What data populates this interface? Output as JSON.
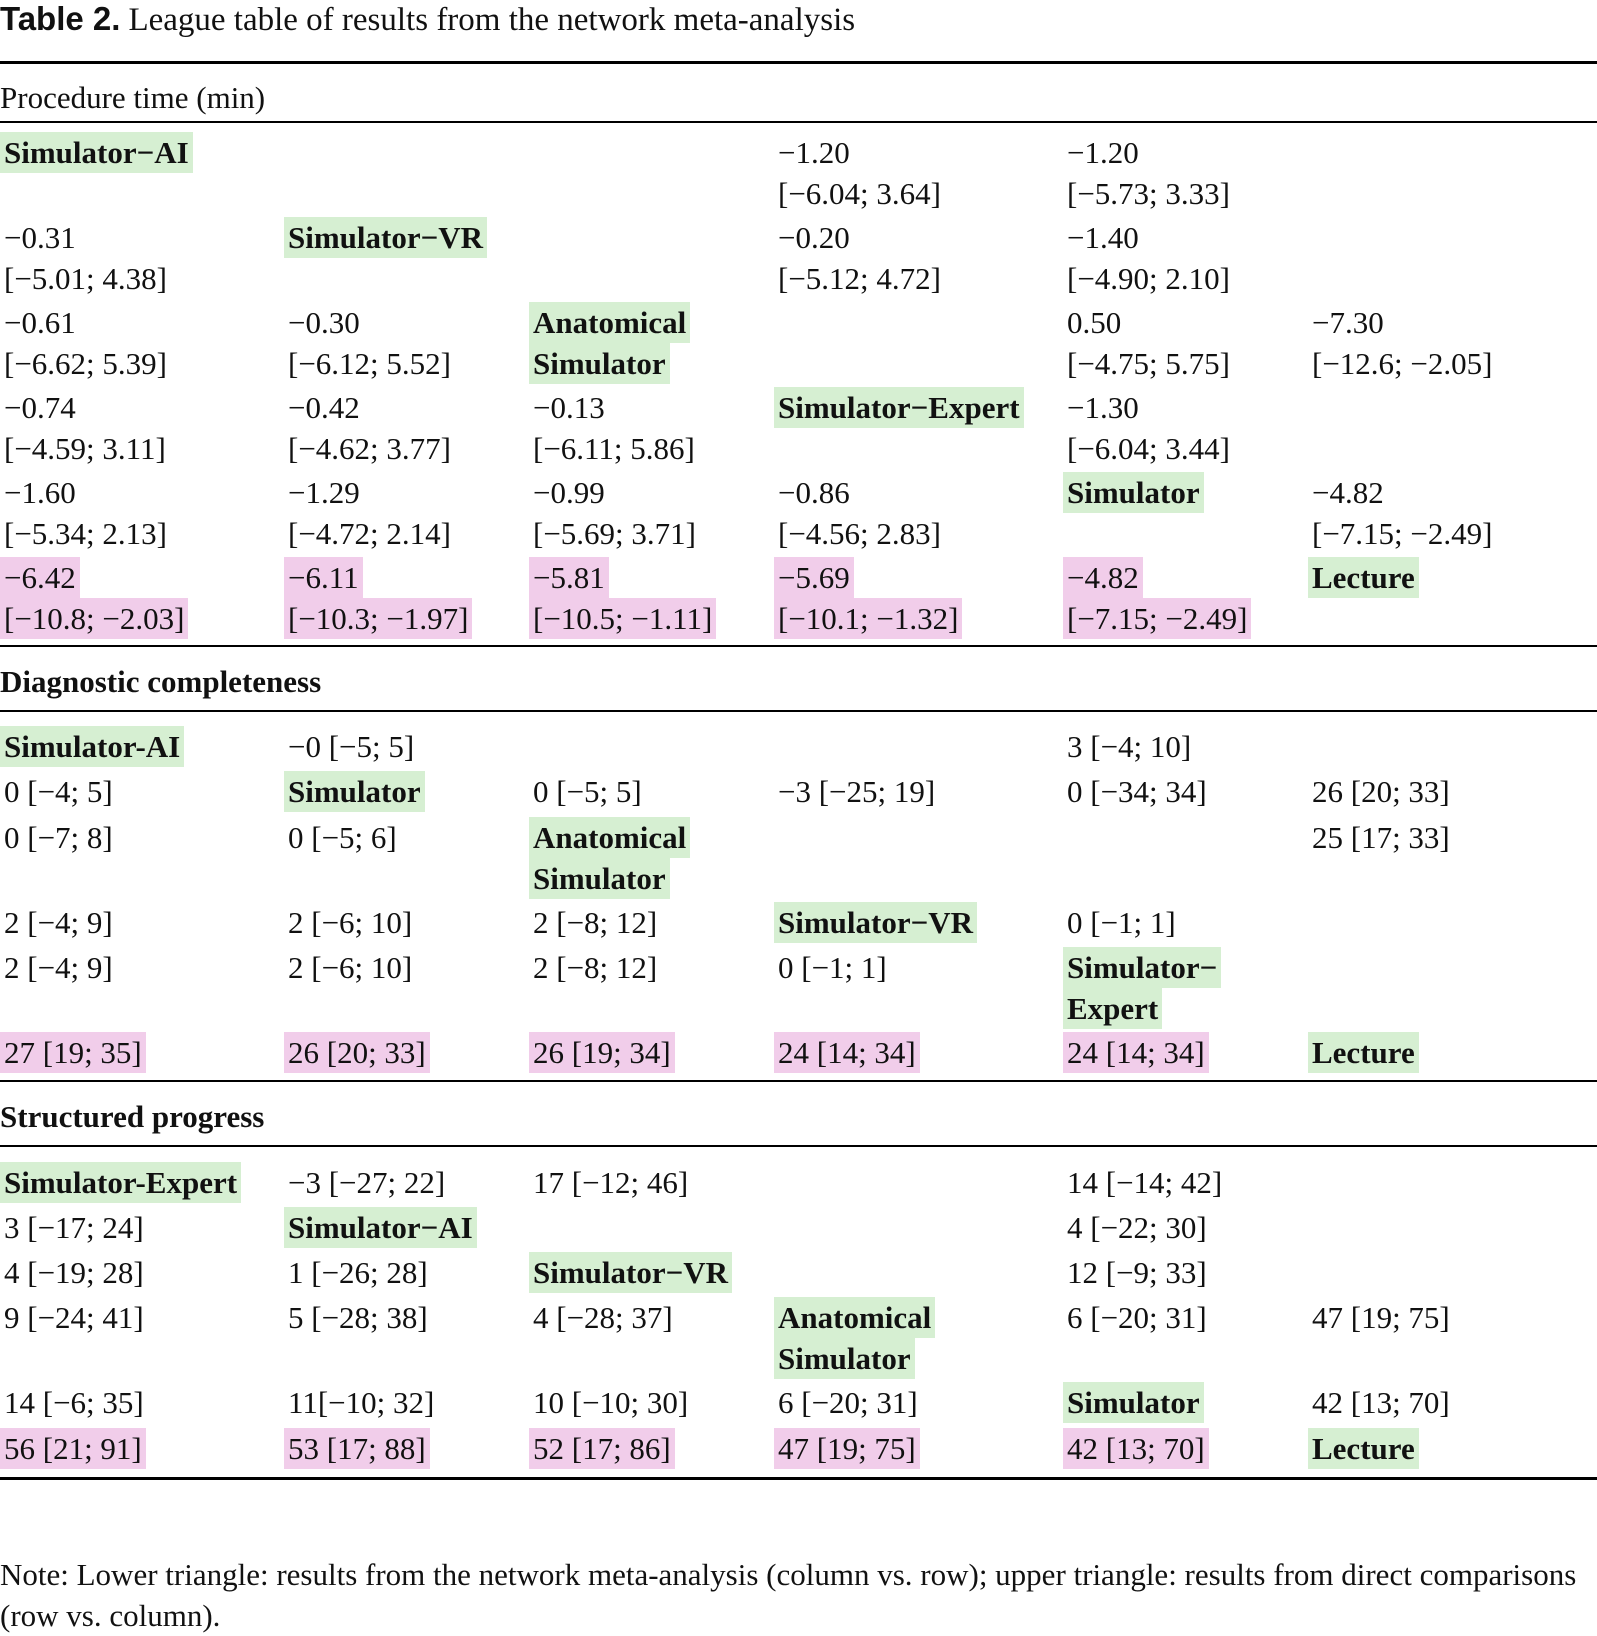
{
  "caption": {
    "label": "Table 2.",
    "title": "League table of results from the network meta-analysis"
  },
  "colors": {
    "treatment_highlight": "#d6efd2",
    "lecture_comparison_highlight": "#f1cdea"
  },
  "sections": [
    {
      "title": "Procedure time (min)",
      "rows": [
        [
          [
            "Simulator−AI"
          ],
          null,
          null,
          [
            "−1.20",
            "[−6.04; 3.64]"
          ],
          [
            "−1.20",
            "[−5.73; 3.33]"
          ],
          null
        ],
        [
          [
            "−0.31",
            "[−5.01; 4.38]"
          ],
          [
            "Simulator−VR"
          ],
          null,
          [
            "−0.20",
            "[−5.12; 4.72]"
          ],
          [
            "−1.40",
            "[−4.90; 2.10]"
          ],
          null
        ],
        [
          [
            "−0.61",
            "[−6.62; 5.39]"
          ],
          [
            "−0.30",
            "[−6.12; 5.52]"
          ],
          [
            "Anatomical",
            "Simulator"
          ],
          null,
          [
            "0.50",
            "[−4.75; 5.75]"
          ],
          [
            "−7.30",
            "[−12.6; −2.05]"
          ]
        ],
        [
          [
            "−0.74",
            "[−4.59; 3.11]"
          ],
          [
            "−0.42",
            "[−4.62; 3.77]"
          ],
          [
            "−0.13",
            "[−6.11; 5.86]"
          ],
          [
            "Simulator−Expert"
          ],
          [
            "−1.30",
            "[−6.04; 3.44]"
          ],
          null
        ],
        [
          [
            "−1.60",
            "[−5.34; 2.13]"
          ],
          [
            "−1.29",
            "[−4.72; 2.14]"
          ],
          [
            "−0.99",
            "[−5.69; 3.71]"
          ],
          [
            "−0.86",
            "[−4.56; 2.83]"
          ],
          [
            "Simulator"
          ],
          [
            "−4.82",
            "[−7.15; −2.49]"
          ]
        ],
        [
          [
            "−6.42",
            "[−10.8; −2.03]"
          ],
          [
            "−6.11",
            "[−10.3; −1.97]"
          ],
          [
            "−5.81",
            "[−10.5; −1.11]"
          ],
          [
            "−5.69",
            "[−10.1; −1.32]"
          ],
          [
            "−4.82",
            "[−7.15; −2.49]"
          ],
          [
            "Lecture"
          ]
        ]
      ]
    },
    {
      "title": "Diagnostic completeness",
      "rows": [
        [
          [
            "Simulator-AI"
          ],
          [
            "−0 [−5; 5]"
          ],
          null,
          null,
          [
            "3 [−4; 10]"
          ],
          null
        ],
        [
          [
            "0 [−4; 5]"
          ],
          [
            "Simulator"
          ],
          [
            "0 [−5; 5]"
          ],
          [
            "−3 [−25; 19]"
          ],
          [
            "0 [−34; 34]"
          ],
          [
            "26 [20; 33]"
          ]
        ],
        [
          [
            "0 [−7; 8]"
          ],
          [
            "0 [−5; 6]"
          ],
          [
            "Anatomical",
            "Simulator"
          ],
          null,
          null,
          [
            "25 [17; 33]"
          ]
        ],
        [
          [
            "2 [−4; 9]"
          ],
          [
            "2 [−6; 10]"
          ],
          [
            "2 [−8; 12]"
          ],
          [
            "Simulator−VR"
          ],
          [
            "0 [−1; 1]"
          ],
          null
        ],
        [
          [
            "2 [−4; 9]"
          ],
          [
            "2 [−6; 10]"
          ],
          [
            "2 [−8; 12]"
          ],
          [
            "0 [−1; 1]"
          ],
          [
            "Simulator−",
            "Expert"
          ],
          null
        ],
        [
          [
            "27 [19; 35]"
          ],
          [
            "26 [20; 33]"
          ],
          [
            "26 [19; 34]"
          ],
          [
            "24 [14; 34]"
          ],
          [
            "24 [14; 34]"
          ],
          [
            "Lecture"
          ]
        ]
      ]
    },
    {
      "title": "Structured progress",
      "rows": [
        [
          [
            "Simulator-Expert"
          ],
          [
            "−3 [−27; 22]"
          ],
          [
            "17 [−12; 46]"
          ],
          null,
          [
            "14 [−14; 42]"
          ],
          null
        ],
        [
          [
            "3 [−17; 24]"
          ],
          [
            "Simulator−AI"
          ],
          null,
          null,
          [
            "4 [−22; 30]"
          ],
          null
        ],
        [
          [
            "4 [−19; 28]"
          ],
          [
            "1 [−26; 28]"
          ],
          [
            "Simulator−VR"
          ],
          null,
          [
            "12 [−9; 33]"
          ],
          null
        ],
        [
          [
            "9 [−24; 41]"
          ],
          [
            "5 [−28; 38]"
          ],
          [
            "4 [−28; 37]"
          ],
          [
            "Anatomical",
            "Simulator"
          ],
          [
            "6 [−20; 31]"
          ],
          [
            "47 [19; 75]"
          ]
        ],
        [
          [
            "14 [−6; 35]"
          ],
          [
            "11[−10; 32]"
          ],
          [
            "10 [−10; 30]"
          ],
          [
            "6 [−20; 31]"
          ],
          [
            "Simulator"
          ],
          [
            "42 [13; 70]"
          ]
        ],
        [
          [
            "56 [21; 91]"
          ],
          [
            "53 [17; 88]"
          ],
          [
            "52 [17; 86]"
          ],
          [
            "47 [19; 75]"
          ],
          [
            "42 [13; 70]"
          ],
          [
            "Lecture"
          ]
        ]
      ]
    }
  ],
  "note": "Note: Lower triangle: results from the network meta-analysis (column vs. row); upper triangle: results from direct comparisons (row vs. column)."
}
